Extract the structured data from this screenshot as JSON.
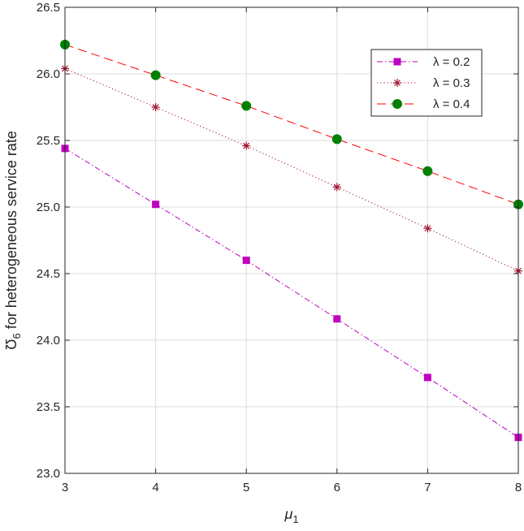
{
  "chart_data": {
    "type": "line",
    "xlabel": "μ",
    "xlabel_sub": "1",
    "ylabel_symbol": "Ʊ",
    "ylabel_sub": "6",
    "ylabel_text": " for heterogeneous service rate",
    "xlim": [
      3,
      8
    ],
    "ylim": [
      23.0,
      26.5
    ],
    "x_ticks": [
      "3",
      "4",
      "5",
      "6",
      "7",
      "8"
    ],
    "y_ticks": [
      "23.0",
      "23.5",
      "24.0",
      "24.5",
      "25.0",
      "25.5",
      "26.0",
      "26.5"
    ],
    "grid": true,
    "legend_position": "top-right",
    "x": [
      3,
      4,
      5,
      6,
      7,
      8
    ],
    "series": [
      {
        "name": "λ = 0.2",
        "values": [
          25.44,
          25.02,
          24.6,
          24.16,
          23.72,
          23.27
        ],
        "color": "#bf00bf",
        "line_style": "dash-dot",
        "marker": "square"
      },
      {
        "name": "λ = 0.3",
        "values": [
          26.04,
          25.75,
          25.46,
          25.15,
          24.84,
          24.52
        ],
        "color": "#a2142f",
        "line_style": "dotted",
        "marker": "asterisk"
      },
      {
        "name": "λ = 0.4",
        "values": [
          26.22,
          25.99,
          25.76,
          25.51,
          25.27,
          25.02
        ],
        "color": "#008000",
        "line_style": "dashed",
        "marker": "circle",
        "line_color": "#ff0000"
      }
    ]
  }
}
